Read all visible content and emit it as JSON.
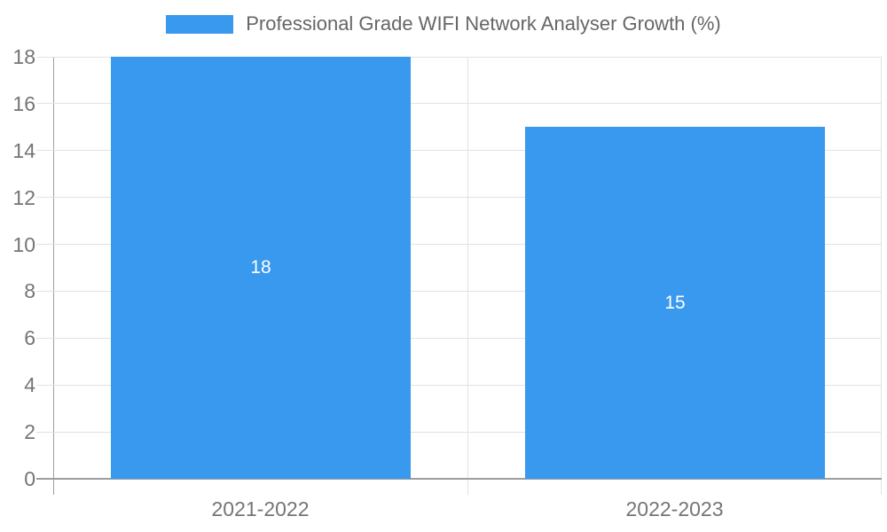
{
  "chart_data": {
    "type": "bar",
    "title": "Professional Grade WIFI Network Analyser Growth (%)",
    "legend": {
      "position": "top",
      "entries": [
        {
          "label": "Professional Grade WIFI Network Analyser Growth (%)",
          "color": "#3899ee"
        }
      ]
    },
    "categories": [
      "2021-2022",
      "2022-2023"
    ],
    "series": [
      {
        "name": "Professional Grade WIFI Network Analyser Growth (%)",
        "values": [
          18,
          15
        ]
      }
    ],
    "data_labels": [
      "18",
      "15"
    ],
    "xlabel": "",
    "ylabel": "",
    "ylim": [
      0,
      18
    ],
    "yticks": [
      0,
      2,
      4,
      6,
      8,
      10,
      12,
      14,
      16,
      18
    ],
    "grid": true
  },
  "colors": {
    "bar": "#3899ee",
    "grid": "#e2e2e2",
    "axis": "#9e9e9e",
    "tick_label": "#757575",
    "legend_text": "#666666",
    "data_label": "#ffffff",
    "background": "#ffffff"
  }
}
